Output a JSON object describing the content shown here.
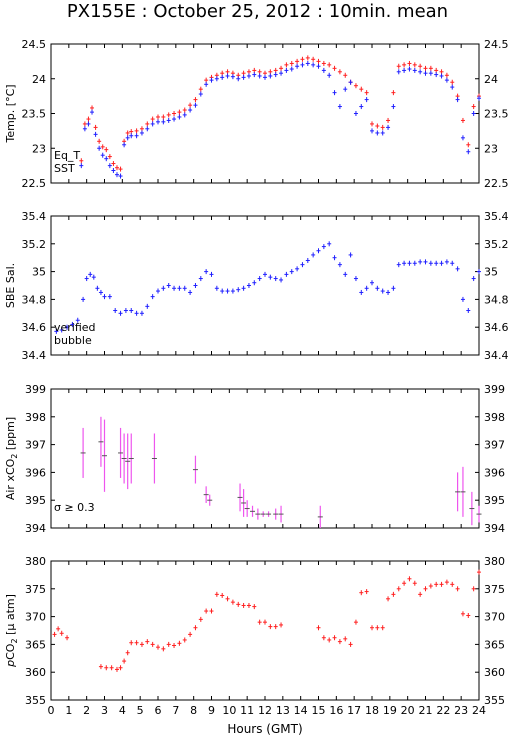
{
  "title": "PX155E : October 25, 2012 : 10min. mean",
  "xlabel": "Hours (GMT)",
  "x_ticks": [
    "0",
    "1",
    "2",
    "3",
    "4",
    "5",
    "6",
    "7",
    "8",
    "9",
    "10",
    "11",
    "12",
    "13",
    "14",
    "15",
    "16",
    "17",
    "18",
    "19",
    "20",
    "21",
    "22",
    "23",
    "24"
  ],
  "colors": {
    "eq_t": "#ff2020",
    "sst": "#2020ff",
    "sal": "#2020ff",
    "bubble": "#dd33dd",
    "xco2": "#ee55ee",
    "pco2": "#ff2020"
  },
  "chart_data": [
    {
      "type": "scatter",
      "ylabel": "Temp. [°C]",
      "xlim": [
        0,
        24
      ],
      "ylim": [
        22.5,
        24.5
      ],
      "yticks": [
        "22.5",
        "23",
        "23.5",
        "24",
        "24.5"
      ],
      "legend": [
        "Eq_T",
        "SST"
      ],
      "series": [
        {
          "name": "Eq_T",
          "x": [
            1.7,
            1.9,
            2.1,
            2.3,
            2.5,
            2.7,
            2.9,
            3.1,
            3.3,
            3.5,
            3.7,
            3.9,
            4.1,
            4.3,
            4.5,
            4.8,
            5.1,
            5.4,
            5.7,
            6.0,
            6.3,
            6.6,
            6.9,
            7.2,
            7.5,
            7.8,
            8.1,
            8.4,
            8.7,
            9.0,
            9.3,
            9.6,
            9.9,
            10.2,
            10.5,
            10.8,
            11.1,
            11.4,
            11.7,
            12.0,
            12.3,
            12.6,
            12.9,
            13.2,
            13.5,
            13.8,
            14.1,
            14.4,
            14.7,
            15.0,
            15.3,
            15.6,
            15.9,
            16.2,
            16.5,
            16.8,
            17.1,
            17.4,
            17.7,
            18.0,
            18.3,
            18.6,
            18.9,
            19.2,
            19.5,
            19.8,
            20.1,
            20.4,
            20.7,
            21.0,
            21.3,
            21.6,
            21.9,
            22.2,
            22.5,
            22.8,
            23.1,
            23.4,
            23.7,
            24.0
          ],
          "y": [
            22.82,
            23.35,
            23.42,
            23.58,
            23.3,
            23.1,
            23.02,
            22.98,
            22.88,
            22.78,
            22.72,
            22.7,
            23.1,
            23.22,
            23.24,
            23.25,
            23.28,
            23.35,
            23.42,
            23.45,
            23.45,
            23.48,
            23.5,
            23.52,
            23.55,
            23.62,
            23.7,
            23.85,
            23.98,
            24.02,
            24.05,
            24.08,
            24.1,
            24.08,
            24.05,
            24.08,
            24.1,
            24.12,
            24.1,
            24.08,
            24.1,
            24.12,
            24.15,
            24.2,
            24.22,
            24.25,
            24.28,
            24.3,
            24.28,
            24.25,
            24.22,
            24.2,
            24.15,
            24.1,
            24.05,
            23.95,
            23.9,
            23.85,
            23.8,
            23.35,
            23.32,
            23.3,
            23.4,
            23.8,
            24.18,
            24.2,
            24.22,
            24.2,
            24.18,
            24.15,
            24.15,
            24.12,
            24.1,
            24.05,
            23.95,
            23.75,
            23.4,
            23.05,
            23.6,
            23.75
          ]
        },
        {
          "name": "SST",
          "x": [
            1.7,
            1.9,
            2.1,
            2.3,
            2.5,
            2.7,
            2.9,
            3.1,
            3.3,
            3.5,
            3.7,
            3.9,
            4.1,
            4.3,
            4.5,
            4.8,
            5.1,
            5.4,
            5.7,
            6.0,
            6.3,
            6.6,
            6.9,
            7.2,
            7.5,
            7.8,
            8.1,
            8.4,
            8.7,
            9.0,
            9.3,
            9.6,
            9.9,
            10.2,
            10.5,
            10.8,
            11.1,
            11.4,
            11.7,
            12.0,
            12.3,
            12.6,
            12.9,
            13.2,
            13.5,
            13.8,
            14.1,
            14.4,
            14.7,
            15.0,
            15.3,
            15.6,
            15.9,
            16.2,
            16.5,
            16.8,
            17.1,
            17.4,
            17.7,
            18.0,
            18.3,
            18.6,
            18.9,
            19.2,
            19.5,
            19.8,
            20.1,
            20.4,
            20.7,
            21.0,
            21.3,
            21.6,
            21.9,
            22.2,
            22.5,
            22.8,
            23.1,
            23.4,
            23.7,
            24.0
          ],
          "y": [
            22.75,
            23.28,
            23.35,
            23.52,
            23.2,
            23.0,
            22.9,
            22.85,
            22.75,
            22.68,
            22.62,
            22.6,
            23.05,
            23.15,
            23.18,
            23.18,
            23.22,
            23.28,
            23.35,
            23.38,
            23.38,
            23.4,
            23.42,
            23.45,
            23.48,
            23.55,
            23.62,
            23.78,
            23.92,
            23.98,
            24.0,
            24.02,
            24.04,
            24.03,
            24.0,
            24.02,
            24.04,
            24.06,
            24.04,
            24.02,
            24.04,
            24.06,
            24.08,
            24.12,
            24.14,
            24.18,
            24.2,
            24.22,
            24.2,
            24.18,
            24.12,
            24.05,
            23.8,
            23.6,
            23.85,
            23.95,
            23.5,
            23.6,
            23.7,
            23.25,
            23.22,
            23.22,
            23.3,
            23.6,
            24.1,
            24.12,
            24.14,
            24.12,
            24.1,
            24.08,
            24.08,
            24.06,
            24.04,
            23.98,
            23.88,
            23.7,
            23.15,
            22.95,
            23.5,
            23.72
          ]
        }
      ]
    },
    {
      "type": "scatter",
      "ylabel": "SBE Sal.",
      "xlim": [
        0,
        24
      ],
      "ylim": [
        34.4,
        35.4
      ],
      "yticks": [
        "34.4",
        "34.6",
        "34.8",
        "35",
        "35.2",
        "35.4"
      ],
      "legend": [
        "verified",
        "bubble"
      ],
      "series": [
        {
          "name": "verified",
          "x": [
            0.3,
            0.6,
            0.9,
            1.2,
            1.5,
            1.8,
            2.0,
            2.2,
            2.4,
            2.6,
            2.8,
            3.0,
            3.3,
            3.6,
            3.9,
            4.2,
            4.5,
            4.8,
            5.1,
            5.4,
            5.7,
            6.0,
            6.3,
            6.6,
            6.9,
            7.2,
            7.5,
            7.8,
            8.1,
            8.4,
            8.7,
            9.0,
            9.3,
            9.6,
            9.9,
            10.2,
            10.5,
            10.8,
            11.1,
            11.4,
            11.7,
            12.0,
            12.3,
            12.6,
            12.9,
            13.2,
            13.5,
            13.8,
            14.1,
            14.4,
            14.7,
            15.0,
            15.3,
            15.6,
            15.9,
            16.2,
            16.5,
            16.8,
            17.1,
            17.4,
            17.7,
            18.0,
            18.3,
            18.6,
            18.9,
            19.2,
            19.5,
            19.8,
            20.1,
            20.4,
            20.7,
            21.0,
            21.3,
            21.6,
            21.9,
            22.2,
            22.5,
            22.8,
            23.1,
            23.4,
            23.7,
            24.0
          ],
          "y": [
            34.57,
            34.58,
            34.6,
            34.62,
            34.65,
            34.8,
            34.95,
            34.98,
            34.96,
            34.88,
            34.85,
            34.82,
            34.82,
            34.72,
            34.7,
            34.72,
            34.72,
            34.7,
            34.7,
            34.75,
            34.82,
            34.86,
            34.88,
            34.9,
            34.88,
            34.88,
            34.88,
            34.85,
            34.9,
            34.95,
            35.0,
            34.98,
            34.88,
            34.86,
            34.86,
            34.86,
            34.87,
            34.88,
            34.9,
            34.92,
            34.95,
            34.98,
            34.96,
            34.95,
            34.94,
            34.98,
            35.0,
            35.02,
            35.05,
            35.08,
            35.12,
            35.15,
            35.18,
            35.2,
            35.1,
            35.05,
            34.98,
            35.12,
            34.95,
            34.85,
            34.88,
            34.92,
            34.88,
            34.86,
            34.85,
            34.88,
            35.05,
            35.06,
            35.06,
            35.06,
            35.07,
            35.07,
            35.06,
            35.06,
            35.06,
            35.07,
            35.06,
            35.02,
            34.8,
            34.72,
            34.95,
            35.0
          ]
        }
      ]
    },
    {
      "type": "scatter",
      "ylabel": "Air xCO2 [ppm]",
      "xlim": [
        0,
        24
      ],
      "ylim": [
        394,
        399
      ],
      "yticks": [
        "394",
        "395",
        "396",
        "397",
        "398",
        "399"
      ],
      "annotation": "σ ≥ 0.3",
      "series": [
        {
          "name": "xCO2",
          "x": [
            1.8,
            2.8,
            3.0,
            3.9,
            4.1,
            4.3,
            4.5,
            5.8,
            8.1,
            8.7,
            8.9,
            10.6,
            10.8,
            11.0,
            11.3,
            11.6,
            11.9,
            12.2,
            12.6,
            12.9,
            15.1,
            22.8,
            23.1,
            23.6,
            24.0
          ],
          "y": [
            396.7,
            397.1,
            396.6,
            396.7,
            396.5,
            396.4,
            396.5,
            396.5,
            396.1,
            395.2,
            395.0,
            395.1,
            394.9,
            394.7,
            394.6,
            394.5,
            394.5,
            394.5,
            394.5,
            394.5,
            394.4,
            395.3,
            395.3,
            394.7,
            394.5
          ],
          "err": [
            0.9,
            0.9,
            1.3,
            0.9,
            0.9,
            1.0,
            0.9,
            0.9,
            0.5,
            0.3,
            0.2,
            0.5,
            0.5,
            0.3,
            0.2,
            0.2,
            0.1,
            0.1,
            0.2,
            0.3,
            0.4,
            0.7,
            0.9,
            0.6,
            0.3
          ]
        }
      ]
    },
    {
      "type": "scatter",
      "ylabel": "pCO2 [µ atm]",
      "xlim": [
        0,
        24
      ],
      "ylim": [
        355,
        380
      ],
      "yticks": [
        "355",
        "360",
        "365",
        "370",
        "375",
        "380"
      ],
      "series": [
        {
          "name": "pCO2",
          "x": [
            0.2,
            0.4,
            0.6,
            0.9,
            2.8,
            3.1,
            3.4,
            3.7,
            3.9,
            4.1,
            4.3,
            4.5,
            4.8,
            5.1,
            5.4,
            5.7,
            6.0,
            6.3,
            6.6,
            6.9,
            7.2,
            7.5,
            7.8,
            8.1,
            8.4,
            8.7,
            9.0,
            9.3,
            9.6,
            9.9,
            10.2,
            10.5,
            10.8,
            11.1,
            11.4,
            11.7,
            12.0,
            12.3,
            12.6,
            12.9,
            15.0,
            15.3,
            15.6,
            15.9,
            16.2,
            16.5,
            16.8,
            17.1,
            17.4,
            17.7,
            18.0,
            18.3,
            18.6,
            18.9,
            19.2,
            19.5,
            19.8,
            20.1,
            20.4,
            20.7,
            21.0,
            21.3,
            21.6,
            21.9,
            22.2,
            22.5,
            22.8,
            23.1,
            23.4,
            23.7,
            24.0
          ],
          "y": [
            366.8,
            367.8,
            367.0,
            366.2,
            361.0,
            360.8,
            360.8,
            360.5,
            360.8,
            362.0,
            363.5,
            365.3,
            365.3,
            365.0,
            365.5,
            365.0,
            364.5,
            364.2,
            365.0,
            364.8,
            365.2,
            365.8,
            366.8,
            368.0,
            369.5,
            371.0,
            371.0,
            374.0,
            373.8,
            373.2,
            372.6,
            372.2,
            372.0,
            372.0,
            371.8,
            369.0,
            369.0,
            368.2,
            368.2,
            368.5,
            368.0,
            366.2,
            365.8,
            366.2,
            365.5,
            366.0,
            365.0,
            369.0,
            374.3,
            374.5,
            368.0,
            368.0,
            368.0,
            373.2,
            374.0,
            375.0,
            376.0,
            376.8,
            376.0,
            374.0,
            375.0,
            375.5,
            375.8,
            375.8,
            376.2,
            375.8,
            375.0,
            370.5,
            370.2,
            375.0,
            378.0
          ]
        }
      ]
    }
  ]
}
